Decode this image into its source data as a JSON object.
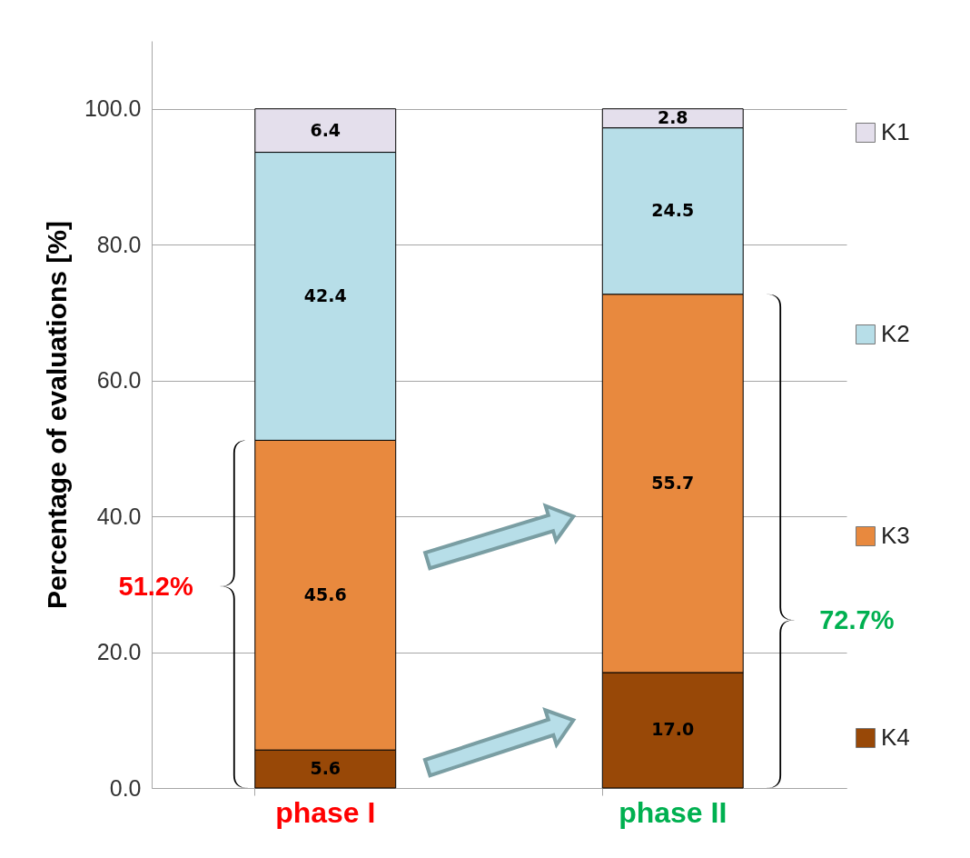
{
  "chart_data": {
    "type": "bar",
    "stacked": true,
    "ylabel": "Percentage of evaluations [%]",
    "categories": [
      "phase I",
      "phase II"
    ],
    "series": [
      {
        "name": "K4",
        "color": "#984807",
        "values": [
          5.6,
          17.0
        ],
        "value_labels": [
          "5.6",
          "17.0"
        ]
      },
      {
        "name": "K3",
        "color": "#e8893e",
        "values": [
          45.6,
          55.7
        ],
        "value_labels": [
          "45.6",
          "55.7"
        ]
      },
      {
        "name": "K2",
        "color": "#b7dee8",
        "values": [
          42.4,
          24.5
        ],
        "value_labels": [
          "42.4",
          "24.5"
        ]
      },
      {
        "name": "K1",
        "color": "#e4dfec",
        "values": [
          6.4,
          2.8
        ],
        "value_labels": [
          "6.4",
          "2.8"
        ]
      }
    ],
    "ylim": [
      0,
      110
    ],
    "yticks": [
      {
        "value": 0,
        "label": "0.0"
      },
      {
        "value": 20,
        "label": "20.0"
      },
      {
        "value": 40,
        "label": "40.0"
      },
      {
        "value": 60,
        "label": "60.0"
      },
      {
        "value": 80,
        "label": "80.0"
      },
      {
        "value": 100,
        "label": "100.0"
      }
    ],
    "grid": "y",
    "legend": "right",
    "annotations": [
      "51.2%",
      "72.7%"
    ]
  }
}
